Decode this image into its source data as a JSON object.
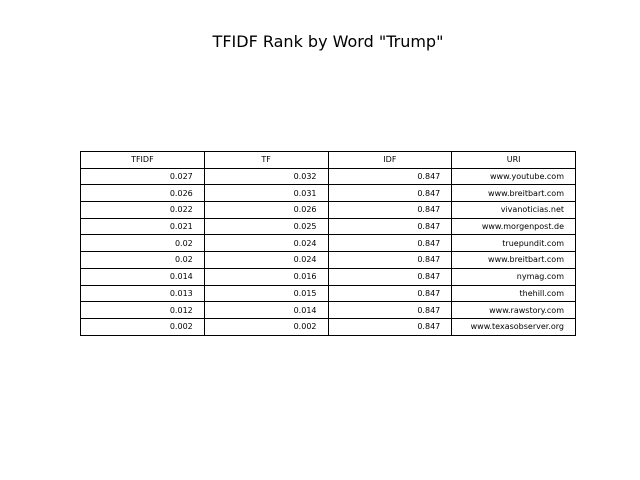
{
  "chart_data": {
    "type": "table",
    "title": "TFIDF Rank by Word \"Trump\"",
    "columns": [
      "TFIDF",
      "TF",
      "IDF",
      "URI"
    ],
    "rows": [
      [
        "0.027",
        "0.032",
        "0.847",
        "www.youtube.com"
      ],
      [
        "0.026",
        "0.031",
        "0.847",
        "www.breitbart.com"
      ],
      [
        "0.022",
        "0.026",
        "0.847",
        "vivanoticias.net"
      ],
      [
        "0.021",
        "0.025",
        "0.847",
        "www.morgenpost.de"
      ],
      [
        "0.02",
        "0.024",
        "0.847",
        "truepundit.com"
      ],
      [
        "0.02",
        "0.024",
        "0.847",
        "www.breitbart.com"
      ],
      [
        "0.014",
        "0.016",
        "0.847",
        "nymag.com"
      ],
      [
        "0.013",
        "0.015",
        "0.847",
        "thehill.com"
      ],
      [
        "0.012",
        "0.014",
        "0.847",
        "www.rawstory.com"
      ],
      [
        "0.002",
        "0.002",
        "0.847",
        "www.texasobserver.org"
      ]
    ]
  }
}
